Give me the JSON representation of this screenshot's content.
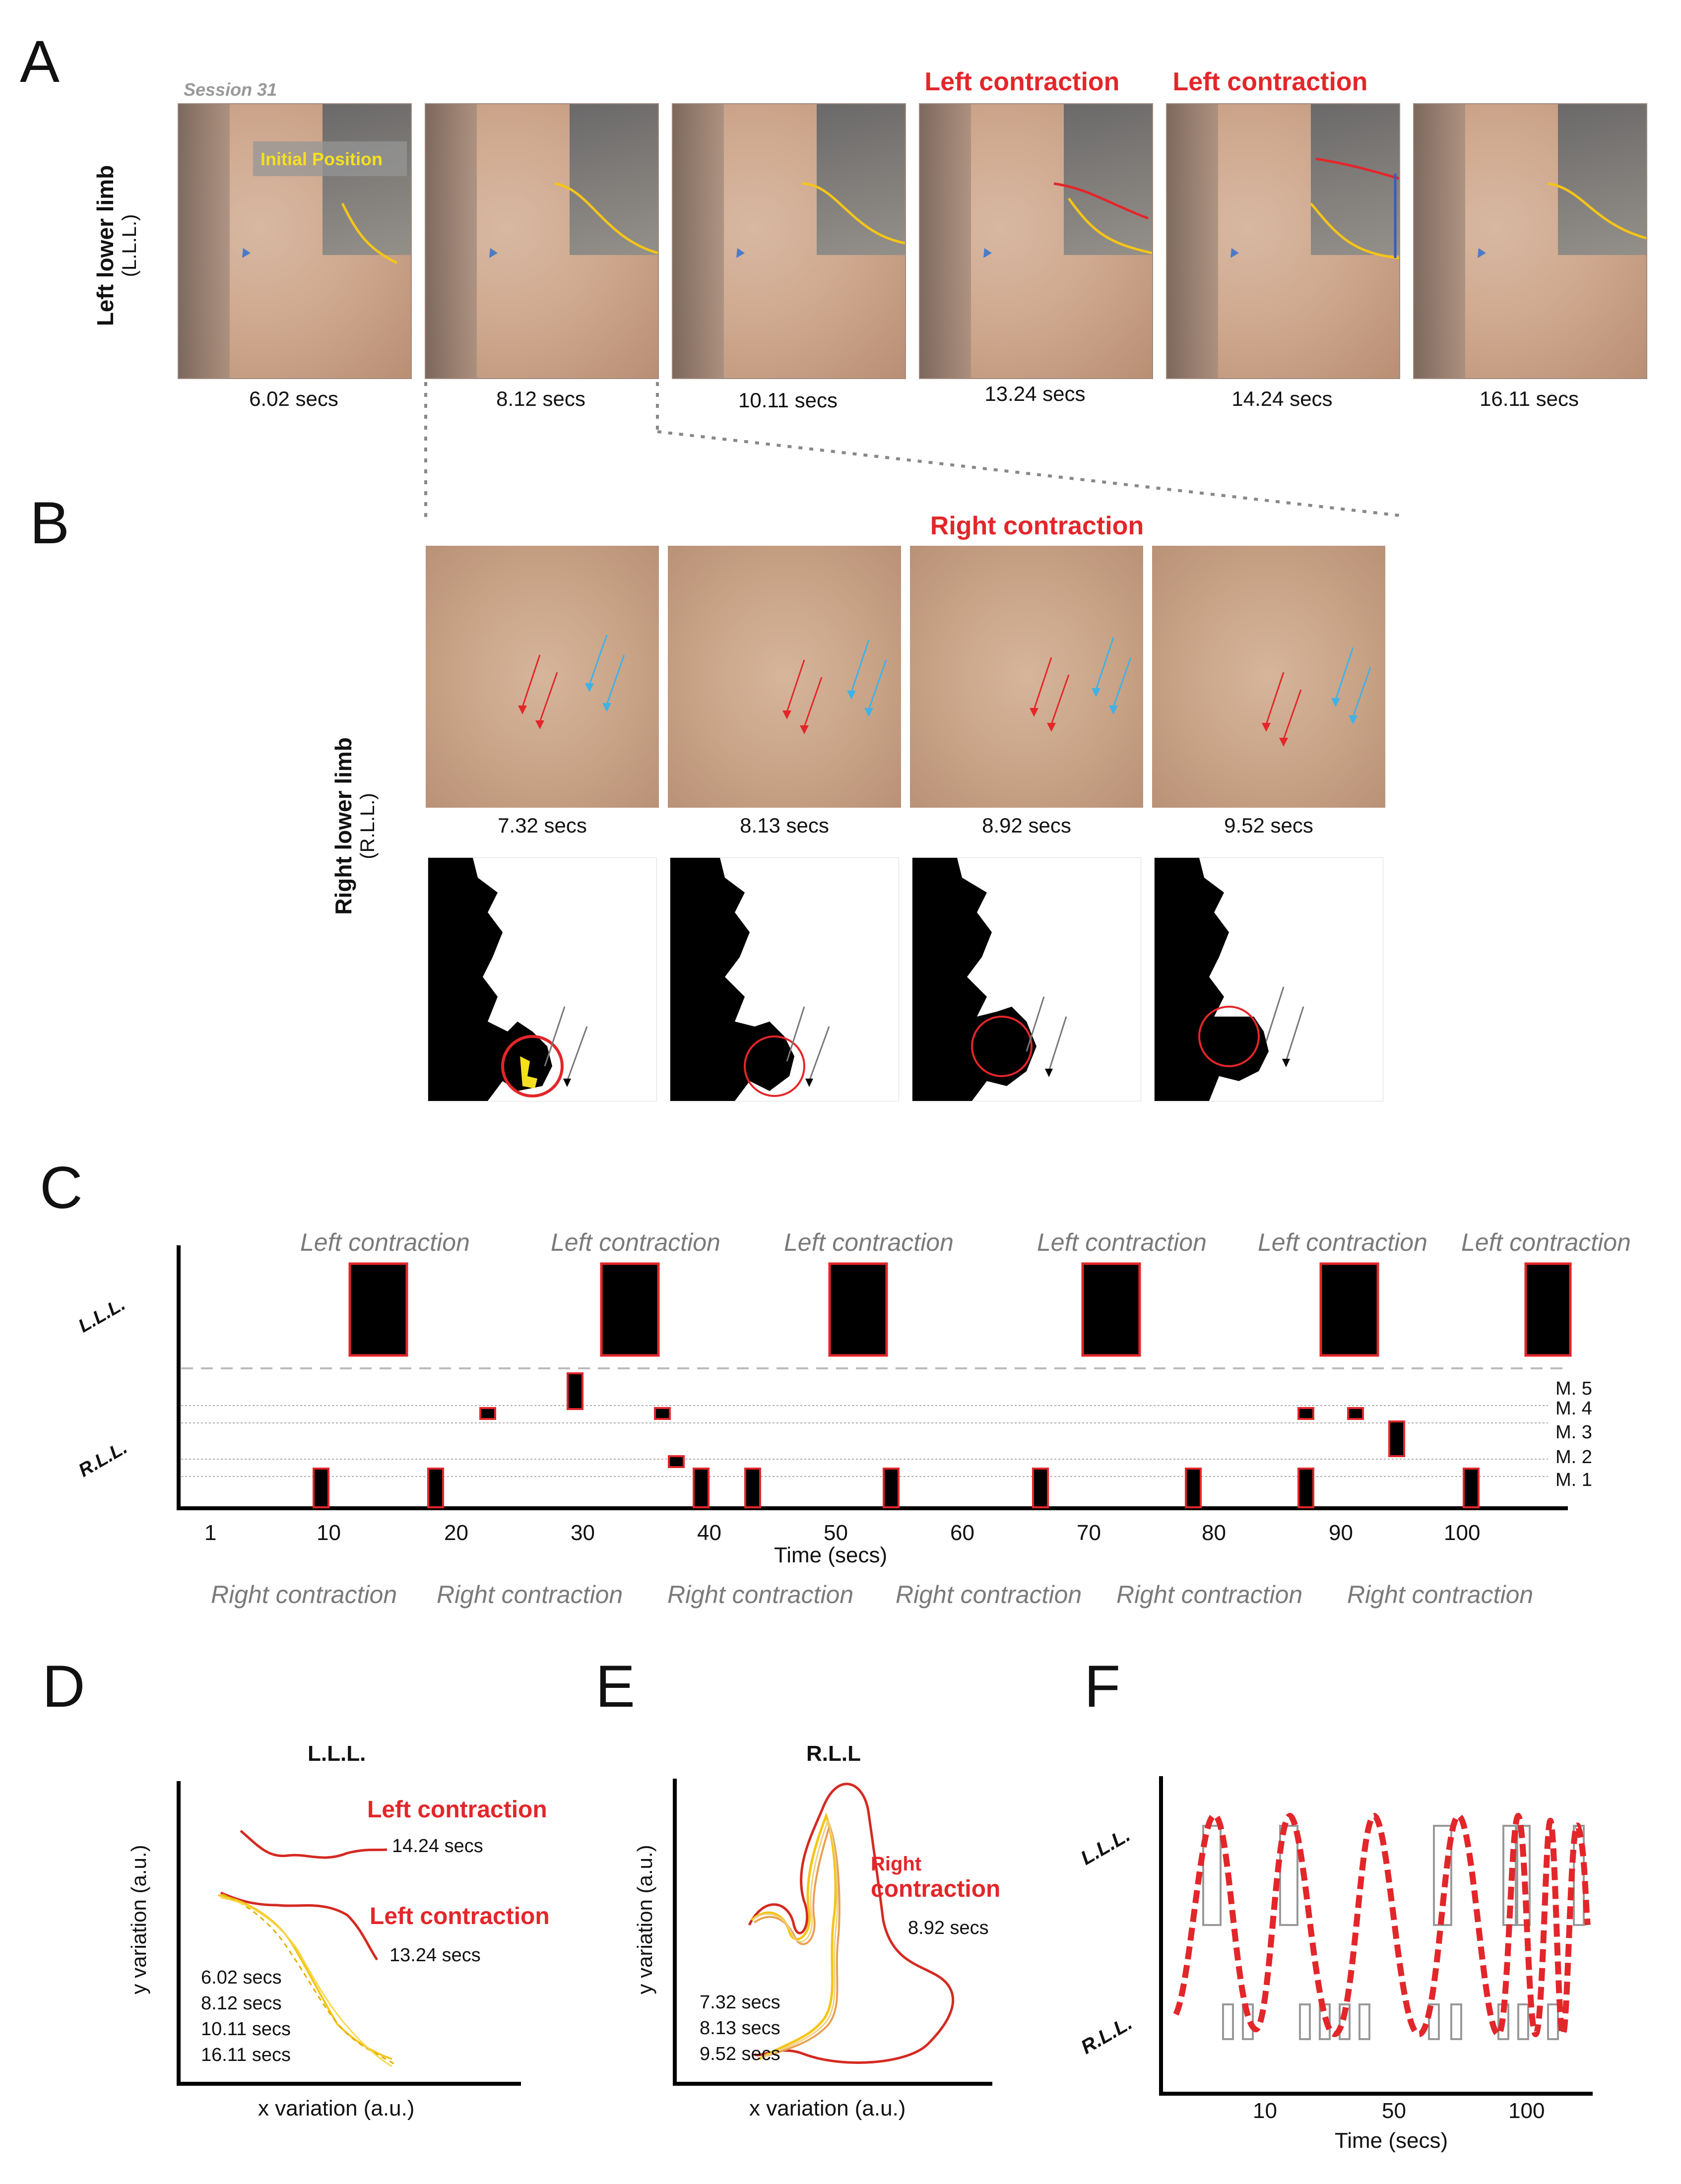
{
  "panels": {
    "a": "A",
    "b": "B",
    "c": "C",
    "d": "D",
    "e": "E",
    "f": "F"
  },
  "panelA": {
    "session": "Session 31",
    "row_label": "Left lower limb",
    "row_sublabel": "(L.L.L.)",
    "initial_position": "Initial Position",
    "frames": [
      {
        "time": "6.02 secs",
        "title": ""
      },
      {
        "time": "8.12 secs",
        "title": ""
      },
      {
        "time": "10.11 secs",
        "title": ""
      },
      {
        "time": "13.24 secs",
        "title": "Left contraction"
      },
      {
        "time": "14.24 secs",
        "title": "Left contraction"
      },
      {
        "time": "16.11 secs",
        "title": ""
      }
    ]
  },
  "panelB": {
    "title": "Right contraction",
    "row_label": "Right lower limb",
    "row_sublabel": "(R.L.L.)",
    "frames": [
      "7.32 secs",
      "8.13 secs",
      "8.92 secs",
      "9.52 secs"
    ]
  },
  "panelC": {
    "lll": "L.L.L.",
    "rll": "R.L.L.",
    "left_label": "Left contraction",
    "right_label": "Right contraction",
    "muscles": [
      "M. 5",
      "M. 4",
      "M. 3",
      "M. 2",
      "M. 1"
    ],
    "xlabel": "Time (secs)",
    "xticks": [
      "1",
      "10",
      "20",
      "30",
      "40",
      "50",
      "60",
      "70",
      "80",
      "90",
      "100"
    ]
  },
  "panelD": {
    "title": "L.L.L.",
    "xlabel": "x variation (a.u.)",
    "ylabel": "y variation (a.u.)",
    "label_top": "Left contraction",
    "time_top": "14.24 secs",
    "label_mid": "Left contraction",
    "time_mid": "13.24 secs",
    "times_yellow": [
      "6.02 secs",
      "8.12 secs",
      "10.11 secs",
      "16.11 secs"
    ]
  },
  "panelE": {
    "title": "R.L.L",
    "xlabel": "x variation (a.u.)",
    "ylabel": "y variation (a.u.)",
    "label_line1": "Right",
    "label_line2": "contraction",
    "time_red": "8.92 secs",
    "times_other": [
      "7.32 secs",
      "8.13 secs",
      "9.52 secs"
    ]
  },
  "panelF": {
    "lll": "L.L.L.",
    "rll": "R.L.L.",
    "xlabel": "Time (secs)",
    "xticks": [
      "10",
      "50",
      "100"
    ]
  },
  "colors": {
    "red": "#e3262a",
    "yellow": "#f5c518",
    "blue": "#5aa9e0",
    "gray": "#7a7a7a"
  }
}
